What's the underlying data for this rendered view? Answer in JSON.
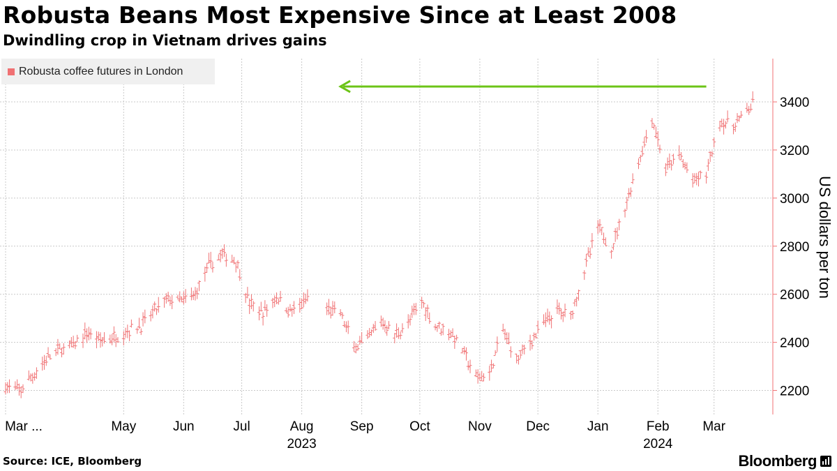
{
  "header": {
    "title": "Robusta Beans Most Expensive Since at Least 2008",
    "subtitle": "Dwindling crop in Vietnam drives gains"
  },
  "footer": {
    "source": "Source: ICE, Bloomberg",
    "brand": "Bloomberg"
  },
  "colors": {
    "series": "#f07173",
    "arrow": "#6cc417",
    "grid": "#c8c8c8",
    "axis": "#f07173"
  },
  "chart_data": {
    "type": "line",
    "style": "ohlc-bars",
    "title": "Robusta Beans Most Expensive Since at Least 2008",
    "subtitle": "Dwindling crop in Vietnam drives gains",
    "xlabel": "",
    "ylabel": "US dollars per ton",
    "ylim": [
      2100,
      3580
    ],
    "yticks": [
      2200,
      2400,
      2600,
      2800,
      3000,
      3200,
      3400
    ],
    "x_range": [
      "2023-03-01",
      "2024-03-22"
    ],
    "xticks": [
      {
        "label": "Mar ...",
        "date": "2023-03-01"
      },
      {
        "label": "May",
        "date": "2023-05-01"
      },
      {
        "label": "Jun",
        "date": "2023-06-01"
      },
      {
        "label": "Jul",
        "date": "2023-07-01"
      },
      {
        "label": "Aug",
        "date": "2023-08-01"
      },
      {
        "label": "Sep",
        "date": "2023-09-01"
      },
      {
        "label": "Oct",
        "date": "2023-10-01"
      },
      {
        "label": "Nov",
        "date": "2023-11-01"
      },
      {
        "label": "Dec",
        "date": "2023-12-01"
      },
      {
        "label": "Jan",
        "date": "2024-01-01"
      },
      {
        "label": "Feb",
        "date": "2024-02-01"
      },
      {
        "label": "Mar",
        "date": "2024-03-01"
      }
    ],
    "year_labels": [
      {
        "label": "2023",
        "date": "2023-08-01"
      },
      {
        "label": "2024",
        "date": "2024-02-01"
      }
    ],
    "grid": true,
    "legend": {
      "position": "top-left",
      "entries": [
        "Robusta coffee futures in London"
      ]
    },
    "annotations": [
      {
        "type": "arrow",
        "direction": "left",
        "from_date": "2024-02-26",
        "to_date": "2023-08-21",
        "value": 3464
      }
    ],
    "series": [
      {
        "name": "Robusta coffee futures in London",
        "points": [
          [
            "2023-03-01",
            2220
          ],
          [
            "2023-03-08",
            2195
          ],
          [
            "2023-03-15",
            2260
          ],
          [
            "2023-03-22",
            2330
          ],
          [
            "2023-03-29",
            2370
          ],
          [
            "2023-04-05",
            2385
          ],
          [
            "2023-04-12",
            2440
          ],
          [
            "2023-04-19",
            2410
          ],
          [
            "2023-04-26",
            2420
          ],
          [
            "2023-05-03",
            2450
          ],
          [
            "2023-05-10",
            2470
          ],
          [
            "2023-05-17",
            2530
          ],
          [
            "2023-05-24",
            2580
          ],
          [
            "2023-05-31",
            2570
          ],
          [
            "2023-06-07",
            2600
          ],
          [
            "2023-06-14",
            2720
          ],
          [
            "2023-06-21",
            2765
          ],
          [
            "2023-06-28",
            2740
          ],
          [
            "2023-07-05",
            2560
          ],
          [
            "2023-07-12",
            2520
          ],
          [
            "2023-07-19",
            2590
          ],
          [
            "2023-07-26",
            2530
          ],
          [
            "2023-08-02",
            2560
          ],
          [
            "2023-08-09",
            2640
          ],
          [
            "2023-08-14",
            2540
          ],
          [
            "2023-08-21",
            2520
          ],
          [
            "2023-08-28",
            2380
          ],
          [
            "2023-09-04",
            2410
          ],
          [
            "2023-09-11",
            2490
          ],
          [
            "2023-09-18",
            2430
          ],
          [
            "2023-09-25",
            2480
          ],
          [
            "2023-10-02",
            2570
          ],
          [
            "2023-10-09",
            2470
          ],
          [
            "2023-10-16",
            2450
          ],
          [
            "2023-10-23",
            2370
          ],
          [
            "2023-10-30",
            2250
          ],
          [
            "2023-11-06",
            2270
          ],
          [
            "2023-11-13",
            2450
          ],
          [
            "2023-11-20",
            2330
          ],
          [
            "2023-11-27",
            2400
          ],
          [
            "2023-12-04",
            2480
          ],
          [
            "2023-12-11",
            2530
          ],
          [
            "2023-12-18",
            2510
          ],
          [
            "2023-12-25",
            2700
          ],
          [
            "2024-01-01",
            2880
          ],
          [
            "2024-01-08",
            2790
          ],
          [
            "2024-01-15",
            2960
          ],
          [
            "2024-01-22",
            3150
          ],
          [
            "2024-01-29",
            3330
          ],
          [
            "2024-02-05",
            3120
          ],
          [
            "2024-02-12",
            3180
          ],
          [
            "2024-02-19",
            3070
          ],
          [
            "2024-02-26",
            3100
          ],
          [
            "2024-03-04",
            3320
          ],
          [
            "2024-03-11",
            3300
          ],
          [
            "2024-03-18",
            3360
          ],
          [
            "2024-03-22",
            3400
          ]
        ]
      }
    ]
  }
}
